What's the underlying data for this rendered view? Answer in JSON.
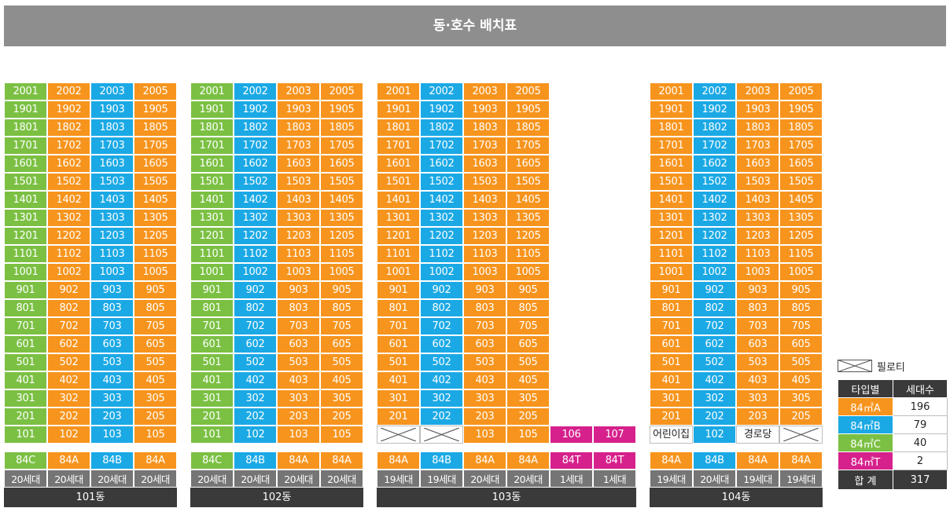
{
  "title": "동·호수 배치표",
  "colors": {
    "84A": "#f7941d",
    "84B": "#1ba9e5",
    "84C": "#7bc043",
    "84T": "#d6218c",
    "banner": "#8e8e8e",
    "household": "#757575",
    "dark": "#3a3a3a"
  },
  "floors": [
    "20",
    "19",
    "18",
    "17",
    "16",
    "15",
    "14",
    "13",
    "12",
    "11",
    "10",
    "9",
    "8",
    "7",
    "6",
    "5",
    "4",
    "3",
    "2",
    "1"
  ],
  "buildings": [
    {
      "name": "101동",
      "columns": [
        {
          "unit": "01",
          "type": "84C",
          "households": "20세대"
        },
        {
          "unit": "02",
          "type": "84A",
          "households": "20세대"
        },
        {
          "unit": "03",
          "type": "84B",
          "households": "20세대"
        },
        {
          "unit": "05",
          "type": "84A",
          "households": "20세대"
        }
      ],
      "ground": [
        {
          "label": "101",
          "kind": "unit",
          "type": "84C"
        },
        {
          "label": "102",
          "kind": "unit",
          "type": "84A"
        },
        {
          "label": "103",
          "kind": "unit",
          "type": "84B"
        },
        {
          "label": "105",
          "kind": "unit",
          "type": "84A"
        }
      ]
    },
    {
      "name": "102동",
      "columns": [
        {
          "unit": "01",
          "type": "84C",
          "households": "20세대"
        },
        {
          "unit": "02",
          "type": "84B",
          "households": "20세대"
        },
        {
          "unit": "03",
          "type": "84A",
          "households": "20세대"
        },
        {
          "unit": "05",
          "type": "84A",
          "households": "20세대"
        }
      ],
      "ground": [
        {
          "label": "101",
          "kind": "unit",
          "type": "84C"
        },
        {
          "label": "102",
          "kind": "unit",
          "type": "84B"
        },
        {
          "label": "103",
          "kind": "unit",
          "type": "84A"
        },
        {
          "label": "105",
          "kind": "unit",
          "type": "84A"
        }
      ]
    },
    {
      "name": "103동",
      "columns": [
        {
          "unit": "01",
          "type": "84A",
          "households": "19세대"
        },
        {
          "unit": "02",
          "type": "84B",
          "households": "19세대"
        },
        {
          "unit": "03",
          "type": "84A",
          "households": "20세대"
        },
        {
          "unit": "05",
          "type": "84A",
          "households": "20세대"
        }
      ],
      "extra_columns": [
        {
          "label": "106",
          "type": "84T",
          "households": "1세대"
        },
        {
          "label": "107",
          "type": "84T",
          "households": "1세대"
        }
      ],
      "ground": [
        {
          "label": "",
          "kind": "pilotis"
        },
        {
          "label": "",
          "kind": "pilotis"
        },
        {
          "label": "103",
          "kind": "unit",
          "type": "84A"
        },
        {
          "label": "105",
          "kind": "unit",
          "type": "84A"
        }
      ]
    },
    {
      "name": "104동",
      "columns": [
        {
          "unit": "01",
          "type": "84A",
          "households": "19세대"
        },
        {
          "unit": "02",
          "type": "84B",
          "households": "20세대"
        },
        {
          "unit": "03",
          "type": "84A",
          "households": "19세대"
        },
        {
          "unit": "05",
          "type": "84A",
          "households": "19세대"
        }
      ],
      "ground": [
        {
          "label": "어린이집",
          "kind": "facility"
        },
        {
          "label": "102",
          "kind": "unit",
          "type": "84B"
        },
        {
          "label": "경로당",
          "kind": "facility"
        },
        {
          "label": "",
          "kind": "pilotis"
        }
      ]
    }
  ],
  "legend": {
    "pilotis_label": "필로티",
    "header_type": "타입별",
    "header_count": "세대수",
    "rows": [
      {
        "type": "84A",
        "label": "84㎡A",
        "count": "196"
      },
      {
        "type": "84B",
        "label": "84㎡B",
        "count": "79"
      },
      {
        "type": "84C",
        "label": "84㎡C",
        "count": "40"
      },
      {
        "type": "84T",
        "label": "84㎡T",
        "count": "2"
      }
    ],
    "total_label": "합 계",
    "total_count": "317"
  }
}
